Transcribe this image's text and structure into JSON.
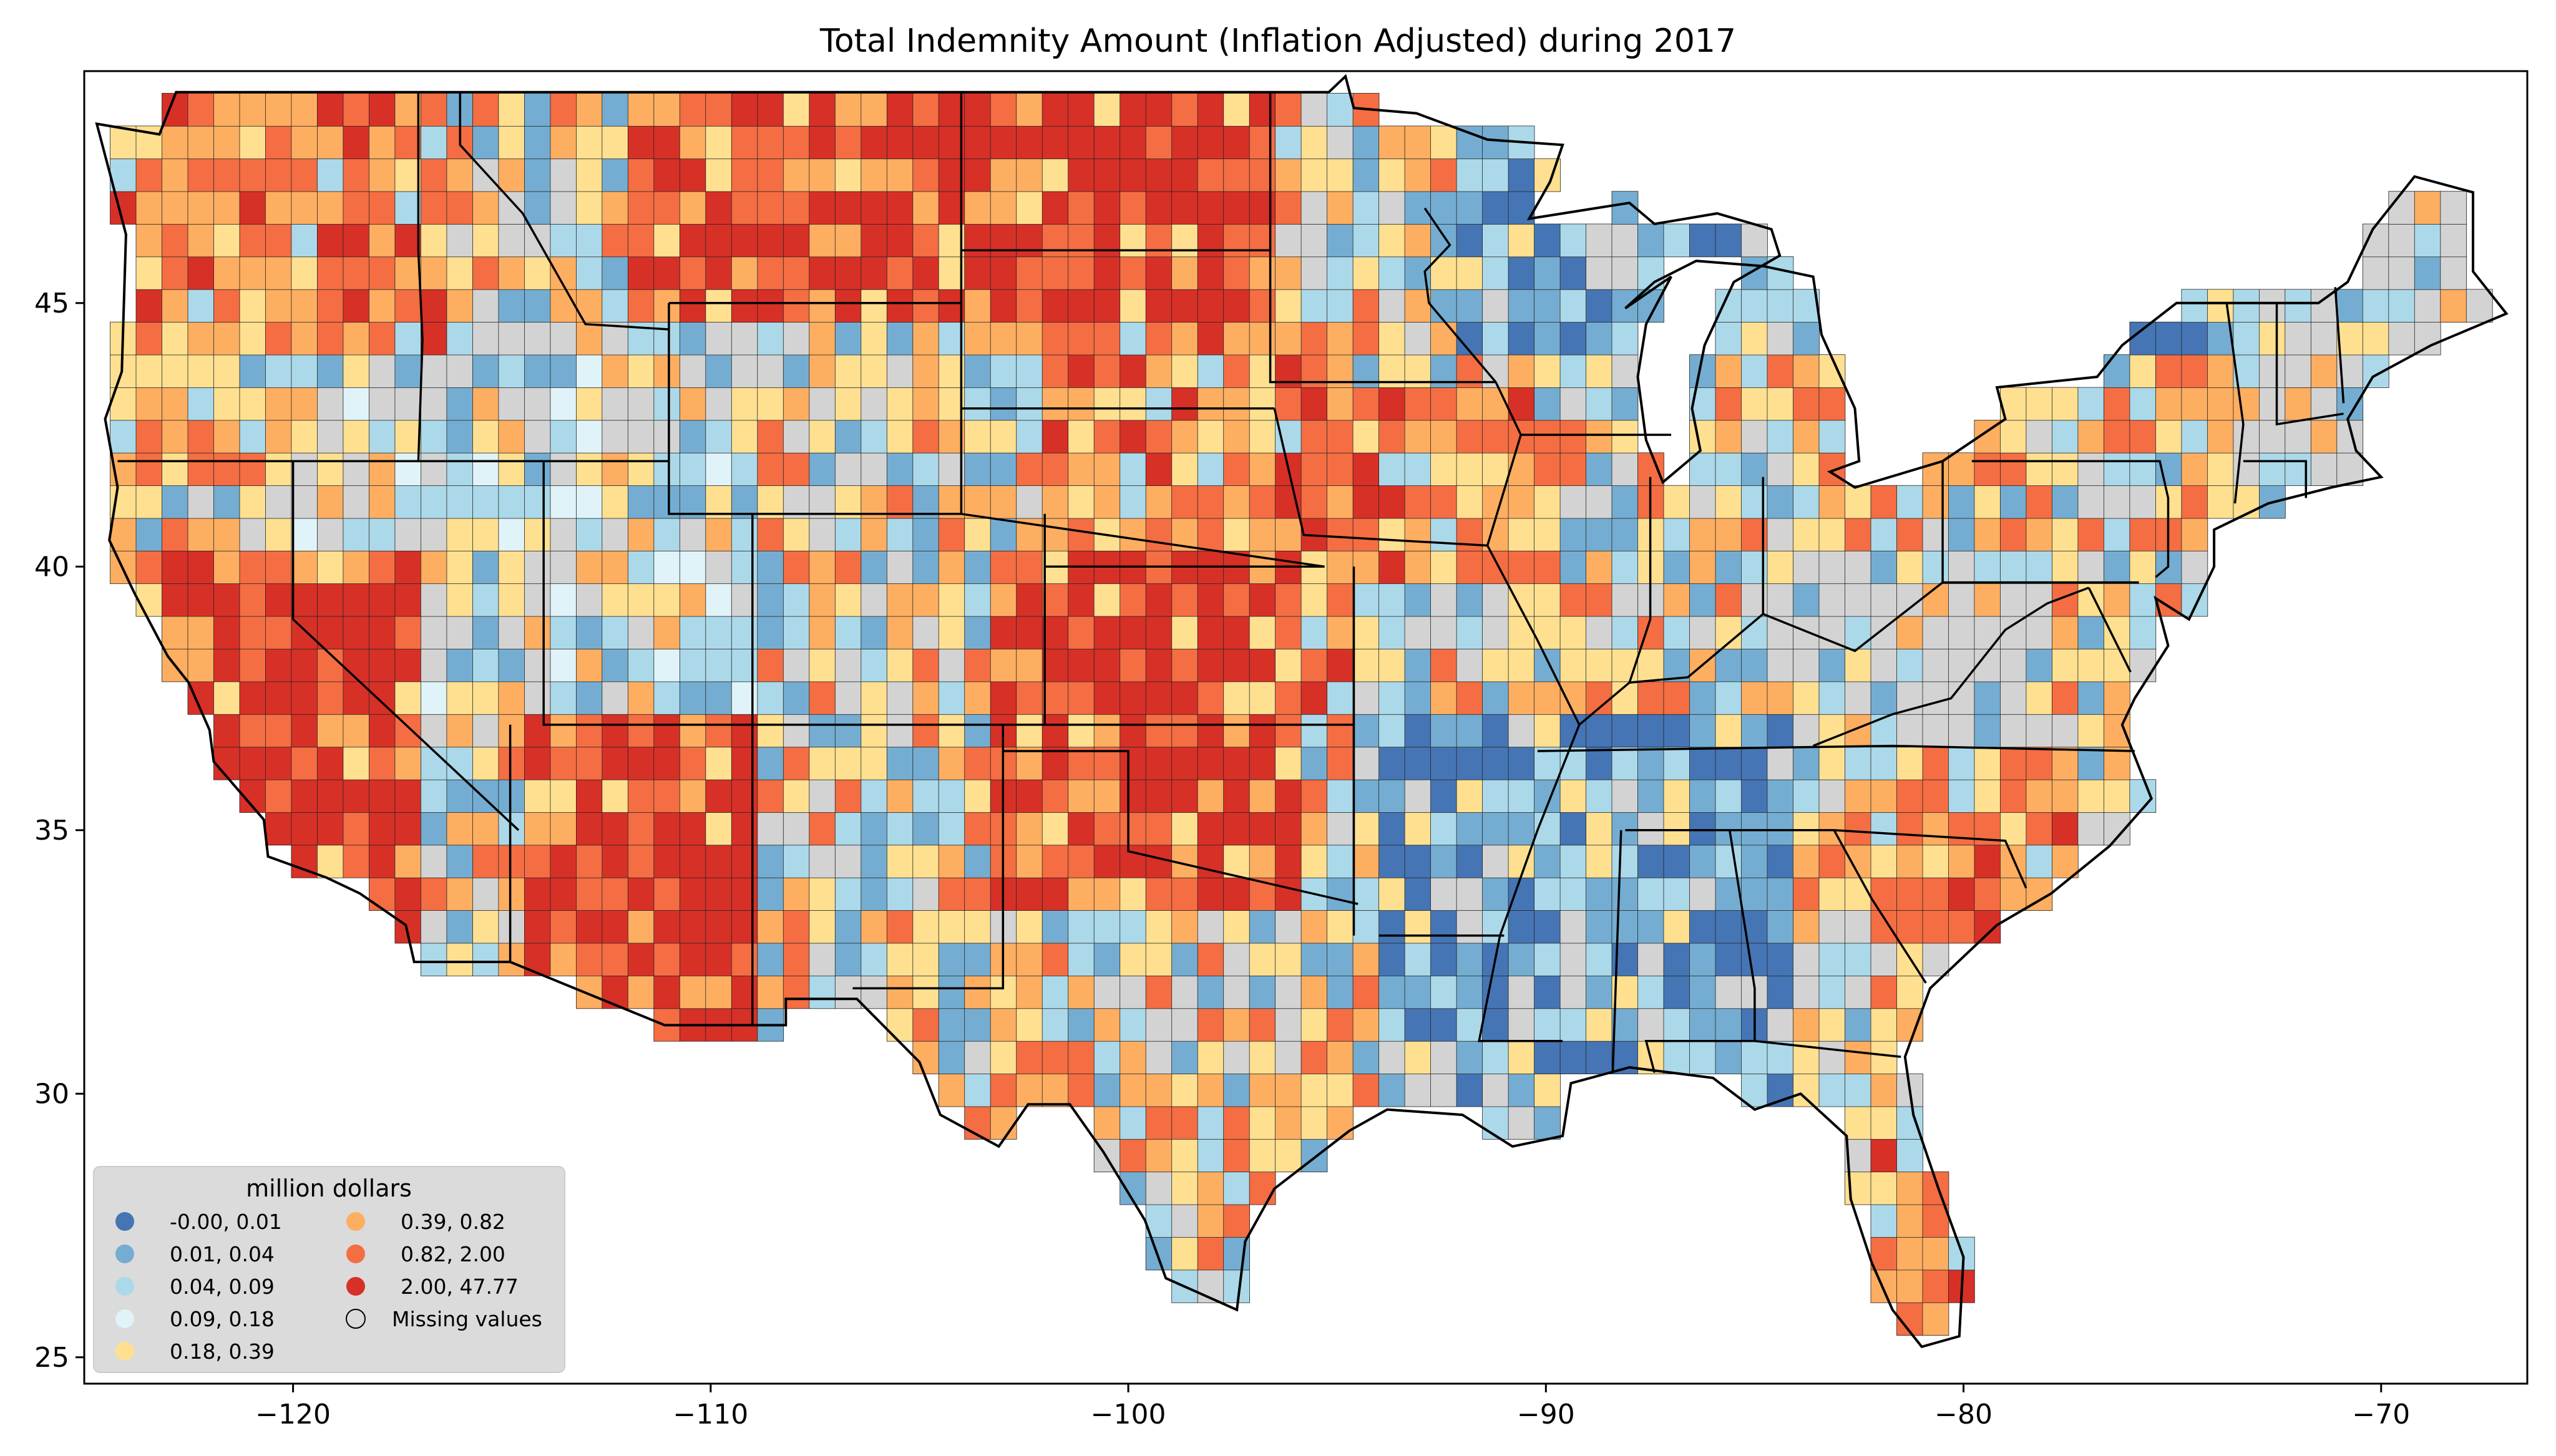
{
  "title": "Total Indemnity Amount  (Inflation Adjusted) during 2017",
  "x_axis": {
    "min": -125,
    "max": -66.5,
    "ticks": [
      -120,
      -110,
      -100,
      -90,
      -80,
      -70
    ],
    "tick_labels": [
      "−120",
      "−110",
      "−100",
      "−90",
      "−80",
      "−70"
    ]
  },
  "y_axis": {
    "min": 24.5,
    "max": 49.4,
    "ticks": [
      25,
      30,
      35,
      40,
      45
    ],
    "tick_labels": [
      "25",
      "30",
      "35",
      "40",
      "45"
    ]
  },
  "legend": {
    "title": "million dollars",
    "placement": "lower-left",
    "items": [
      {
        "label": "-0.00,  0.01",
        "color": "#4575b4"
      },
      {
        "label": "0.01,  0.04",
        "color": "#74add1"
      },
      {
        "label": "0.04,  0.09",
        "color": "#abd9e9"
      },
      {
        "label": "0.09,  0.18",
        "color": "#e0f3f8"
      },
      {
        "label": "0.18,  0.39",
        "color": "#fee090"
      },
      {
        "label": "0.39,  0.82",
        "color": "#fdae61"
      },
      {
        "label": "0.82,  2.00",
        "color": "#f46d43"
      },
      {
        "label": "2.00, 47.77",
        "color": "#d73027"
      },
      {
        "label": "Missing values",
        "color": "#d3d3d3"
      }
    ]
  },
  "map": {
    "region": "contiguous-united-states",
    "missing_color": "#d3d3d3",
    "border_color": "#000000",
    "region_shading": [
      {
        "area": "Montana / North Dakota / South Dakota plains",
        "category": "2.00, 47.77"
      },
      {
        "area": "Arizona",
        "category": "2.00, 47.77"
      },
      {
        "area": "Kansas / western Oklahoma / Texas panhandle",
        "category": "2.00, 47.77"
      },
      {
        "area": "Central California",
        "category": "2.00, 47.77"
      },
      {
        "area": "Iowa / northern Missouri",
        "category": "0.82,  2.00"
      },
      {
        "area": "Appalachian / Kentucky / West Virginia",
        "category": "-0.00,  0.01"
      },
      {
        "area": "Nevada / Utah / Wyoming",
        "category": "Missing values"
      },
      {
        "area": "New England",
        "category": "Missing values"
      },
      {
        "area": "Mississippi / Alabama",
        "category": "-0.00,  0.01"
      }
    ]
  }
}
